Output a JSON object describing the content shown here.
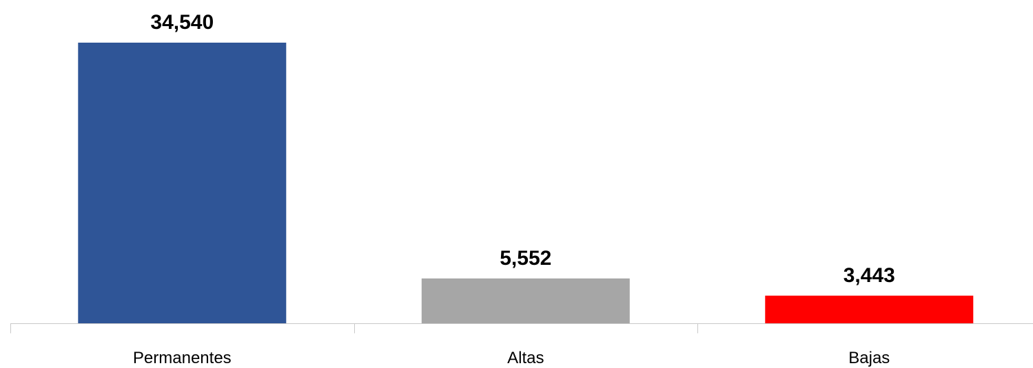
{
  "chart_data": {
    "type": "bar",
    "categories": [
      "Permanentes",
      "Altas",
      "Bajas"
    ],
    "values": [
      34540,
      5552,
      3443
    ],
    "value_labels": [
      "34,540",
      "5,552",
      "3,443"
    ],
    "colors": [
      "#2f5597",
      "#a6a6a6",
      "#ff0000"
    ],
    "title": "",
    "xlabel": "",
    "ylabel": "",
    "ylim": [
      0,
      35000
    ],
    "grid": false,
    "legend": "none"
  }
}
